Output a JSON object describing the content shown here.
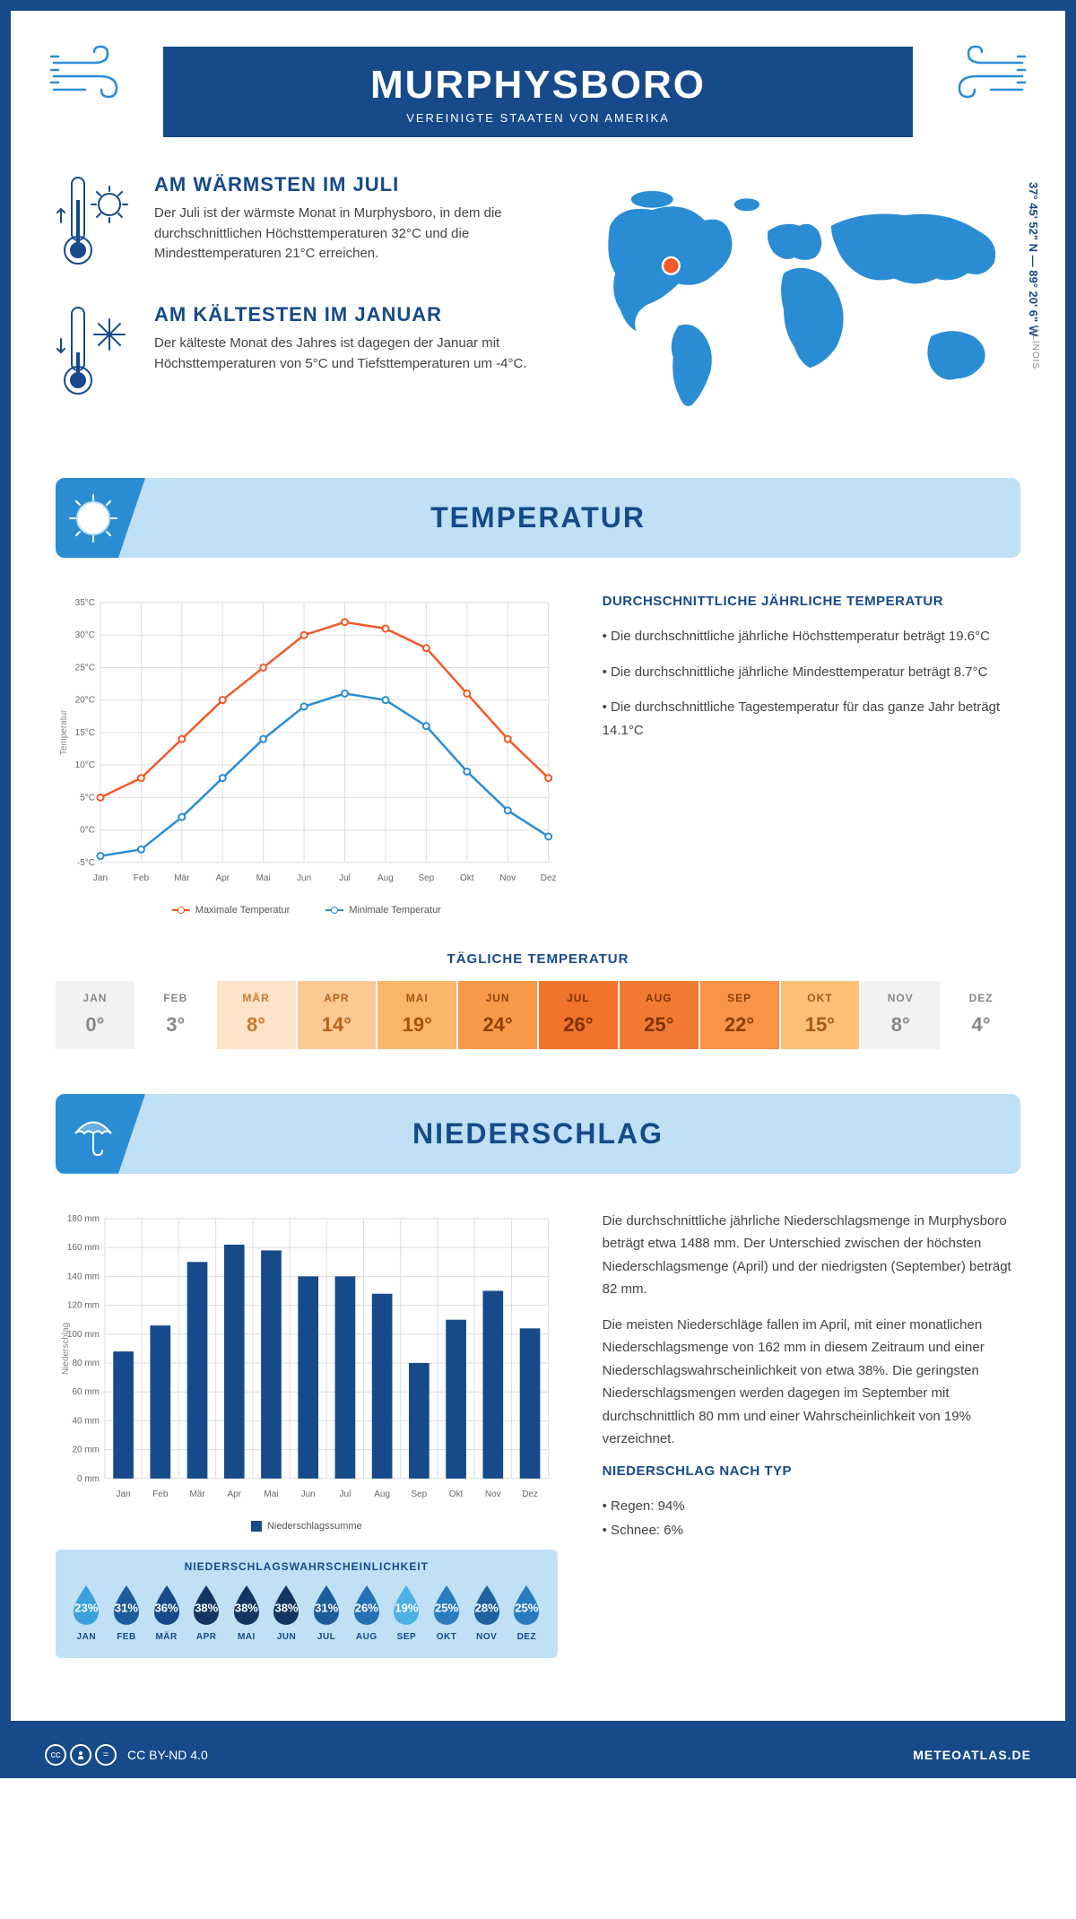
{
  "header": {
    "city": "MURPHYSBORO",
    "country": "VEREINIGTE STAATEN VON AMERIKA"
  },
  "location": {
    "coords": "37° 45' 52\" N — 89° 20' 6\" W",
    "state": "ILLINOIS"
  },
  "warmest": {
    "title": "AM WÄRMSTEN IM JULI",
    "text": "Der Juli ist der wärmste Monat in Murphysboro, in dem die durchschnittlichen Höchsttemperaturen 32°C und die Mindesttemperaturen 21°C erreichen."
  },
  "coldest": {
    "title": "AM KÄLTESTEN IM JANUAR",
    "text": "Der kälteste Monat des Jahres ist dagegen der Januar mit Höchsttemperaturen von 5°C und Tiefsttemperaturen um -4°C."
  },
  "months": [
    "Jan",
    "Feb",
    "Mär",
    "Apr",
    "Mai",
    "Jun",
    "Jul",
    "Aug",
    "Sep",
    "Okt",
    "Nov",
    "Dez"
  ],
  "months_upper": [
    "JAN",
    "FEB",
    "MÄR",
    "APR",
    "MAI",
    "JUN",
    "JUL",
    "AUG",
    "SEP",
    "OKT",
    "NOV",
    "DEZ"
  ],
  "temperature": {
    "section_title": "TEMPERATUR",
    "y_title": "Temperatur",
    "y_ticks": [
      "-5°C",
      "0°C",
      "5°C",
      "10°C",
      "15°C",
      "20°C",
      "25°C",
      "30°C",
      "35°C"
    ],
    "y_min": -5,
    "y_max": 35,
    "max_series": {
      "label": "Maximale Temperatur",
      "color": "#f15a29",
      "values": [
        5,
        8,
        14,
        20,
        25,
        30,
        32,
        31,
        28,
        21,
        14,
        8
      ]
    },
    "min_series": {
      "label": "Minimale Temperatur",
      "color": "#2a8dd4",
      "values": [
        -4,
        -3,
        2,
        8,
        14,
        19,
        21,
        20,
        16,
        9,
        3,
        -1
      ]
    },
    "avg_block": {
      "title": "DURCHSCHNITTLICHE JÄHRLICHE TEMPERATUR",
      "bullet1": "• Die durchschnittliche jährliche Höchsttemperatur beträgt 19.6°C",
      "bullet2": "• Die durchschnittliche jährliche Mindesttemperatur beträgt 8.7°C",
      "bullet3": "• Die durchschnittliche Tagestemperatur für das ganze Jahr beträgt 14.1°C"
    },
    "daily": {
      "title": "TÄGLICHE TEMPERATUR",
      "values": [
        "0°",
        "3°",
        "8°",
        "14°",
        "19°",
        "24°",
        "26°",
        "25°",
        "22°",
        "15°",
        "8°",
        "4°"
      ],
      "cell_bg": [
        "#f2f2f2",
        "#ffffff",
        "#fde3c8",
        "#fcc993",
        "#fbb56c",
        "#f89a4a",
        "#f1722b",
        "#f27a32",
        "#f89347",
        "#fcc078",
        "#f2f2f2",
        "#ffffff"
      ],
      "cell_fg": [
        "#888",
        "#888",
        "#c97a2e",
        "#b8631c",
        "#a5520f",
        "#8f4008",
        "#7a3200",
        "#7d3400",
        "#8c3f06",
        "#aa5914",
        "#888",
        "#888"
      ]
    }
  },
  "precipitation": {
    "section_title": "NIEDERSCHLAG",
    "y_title": "Niederschlag",
    "y_max": 180,
    "y_step": 20,
    "values": [
      88,
      106,
      150,
      162,
      158,
      140,
      140,
      128,
      80,
      110,
      130,
      104
    ],
    "bar_color": "#164a8a",
    "legend": "Niederschlagssumme",
    "text1": "Die durchschnittliche jährliche Niederschlagsmenge in Murphysboro beträgt etwa 1488 mm. Der Unterschied zwischen der höchsten Niederschlagsmenge (April) und der niedrigsten (September) beträgt 82 mm.",
    "text2": "Die meisten Niederschläge fallen im April, mit einer monatlichen Niederschlagsmenge von 162 mm in diesem Zeitraum und einer Niederschlagswahrscheinlichkeit von etwa 38%. Die geringsten Niederschlagsmengen werden dagegen im September mit durchschnittlich 80 mm und einer Wahrscheinlichkeit von 19% verzeichnet.",
    "by_type_title": "NIEDERSCHLAG NACH TYP",
    "by_type_rain": "• Regen: 94%",
    "by_type_snow": "• Schnee: 6%",
    "probability": {
      "title": "NIEDERSCHLAGSWAHRSCHEINLICHKEIT",
      "values": [
        "23%",
        "31%",
        "36%",
        "38%",
        "38%",
        "38%",
        "31%",
        "26%",
        "19%",
        "25%",
        "28%",
        "25%"
      ],
      "colors": [
        "#3ca1db",
        "#1d5d9b",
        "#164a8a",
        "#12365f",
        "#12365f",
        "#12365f",
        "#1d5d9b",
        "#2571b3",
        "#4cb1e5",
        "#2a7cbf",
        "#1f629f",
        "#2a7cbf"
      ]
    }
  },
  "footer": {
    "license": "CC BY-ND 4.0",
    "site": "METEOATLAS.DE"
  },
  "colors": {
    "primary": "#164a8a",
    "light_blue": "#bfe0f5",
    "mid_blue": "#2a8dd4",
    "orange": "#f15a29"
  }
}
